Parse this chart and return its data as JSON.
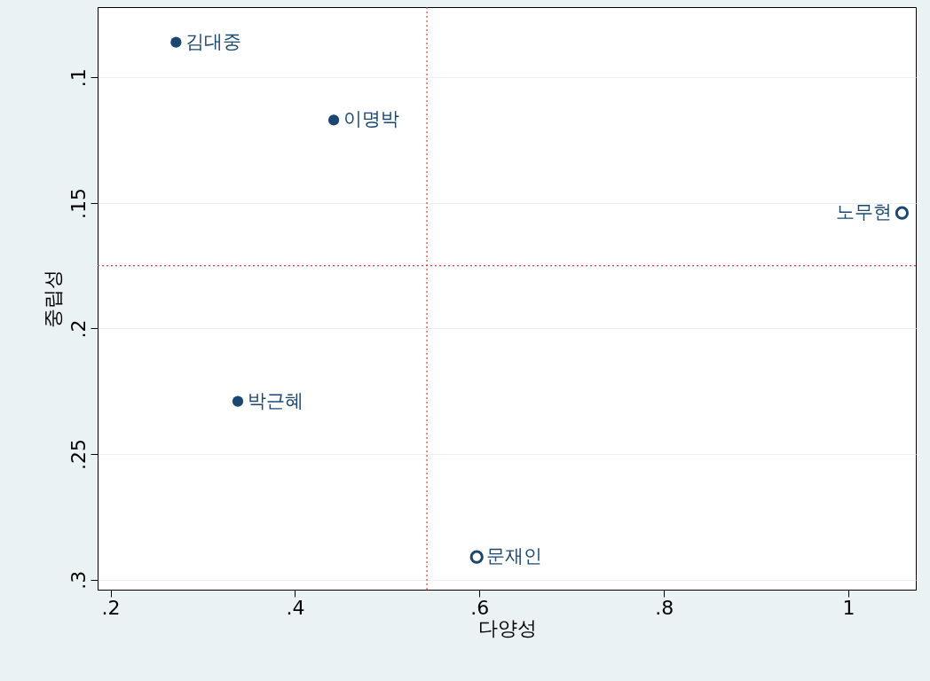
{
  "chart_data": {
    "type": "scatter",
    "xlabel": "다양성",
    "ylabel": "중립성",
    "xlim": [
      0.186,
      1.073
    ],
    "ylim": [
      0.304,
      0.072
    ],
    "xticks": [
      {
        "value": 0.2,
        "label": ".2"
      },
      {
        "value": 0.4,
        "label": ".4"
      },
      {
        "value": 0.6,
        "label": ".6"
      },
      {
        "value": 0.8,
        "label": ".8"
      },
      1
    ],
    "yticks": [
      {
        "value": 0.1,
        "label": ".1"
      },
      {
        "value": 0.15,
        "label": ".15"
      },
      {
        "value": 0.2,
        "label": ".2"
      },
      {
        "value": 0.25,
        "label": ".25"
      },
      {
        "value": 0.3,
        "label": ".3"
      }
    ],
    "grid": "y",
    "marker": "circle",
    "series": [
      {
        "color": "#1a476f",
        "x": [
          0.271,
          0.442,
          0.338
        ],
        "values": [
          0.086,
          0.117,
          0.229
        ]
      },
      {
        "color": "#1a476f",
        "marker": "circle open",
        "x": [
          1.058,
          0.597
        ],
        "values": [
          0.154,
          0.291
        ]
      }
    ],
    "annotations": [
      {
        "text": "김대중",
        "x": 0.271,
        "y": 0.086
      },
      {
        "text": "이명박",
        "x": 0.442,
        "y": 0.117
      },
      {
        "text": "박근혜",
        "x": 0.338,
        "y": 0.229
      },
      {
        "text": "노무현",
        "x": 1.058,
        "y": 0.154
      },
      {
        "text": "문재인",
        "x": 0.597,
        "y": 0.291
      }
    ],
    "ref_lines": [
      {
        "axis": "x",
        "value": 0.543,
        "color": "#e8383d",
        "line_style": "dotted"
      },
      {
        "axis": "y",
        "value": 0.175,
        "color": "#e8383d",
        "line_style": "dotted"
      }
    ]
  }
}
